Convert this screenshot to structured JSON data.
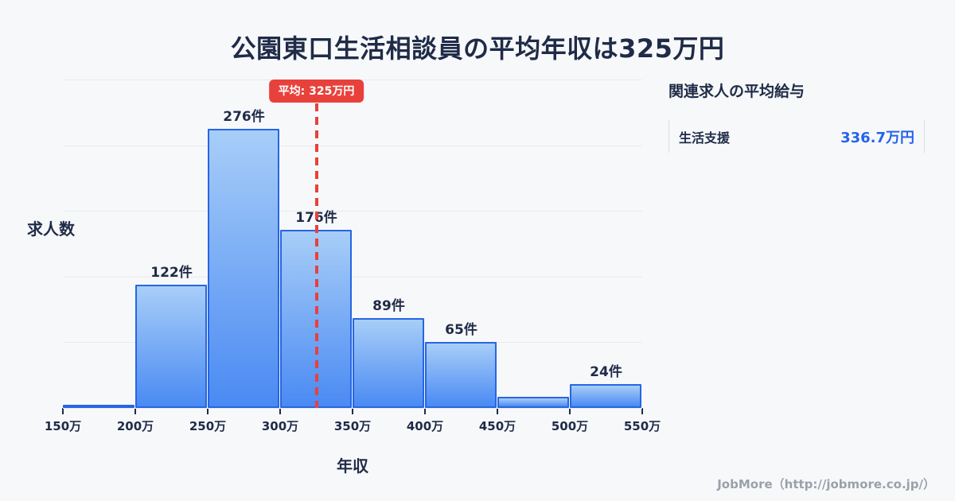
{
  "title": "公園東口生活相談員の平均年収は325万円",
  "chart_data": {
    "type": "bar",
    "subtype": "histogram",
    "title": "公園東口生活相談員の平均年収は325万円",
    "xlabel": "年収",
    "ylabel": "求人数",
    "bin_edge_labels": [
      "150万",
      "200万",
      "250万",
      "300万",
      "350万",
      "400万",
      "450万",
      "500万",
      "550万"
    ],
    "x_range_man_yen": [
      150,
      550
    ],
    "values": [
      3,
      122,
      276,
      176,
      89,
      65,
      11,
      24
    ],
    "value_labels": [
      "",
      "122件",
      "276件",
      "176件",
      "89件",
      "65件",
      "",
      "24件"
    ],
    "ylim": [
      0,
      325
    ],
    "grid": true,
    "gridline_count": 6,
    "average": {
      "value_man_yen": 325,
      "label": "平均: 325万円"
    },
    "legend": "none"
  },
  "side_panel": {
    "header": "関連求人の平均給与",
    "rows": [
      {
        "label": "生活支援",
        "value": "336.7万円"
      }
    ]
  },
  "footer": {
    "credit": "JobMore（http://jobmore.co.jp/）"
  },
  "colors": {
    "background": "#f7f8fa",
    "text_dark": "#1f2b47",
    "bar_fill_top": "#a8cef8",
    "bar_fill_bottom": "#4a8af3",
    "bar_border": "#2666e3",
    "average_red": "#e8413c",
    "value_blue": "#2563eb",
    "gridline": "#e9ebf0",
    "footer_gray": "#9ba1aa"
  }
}
